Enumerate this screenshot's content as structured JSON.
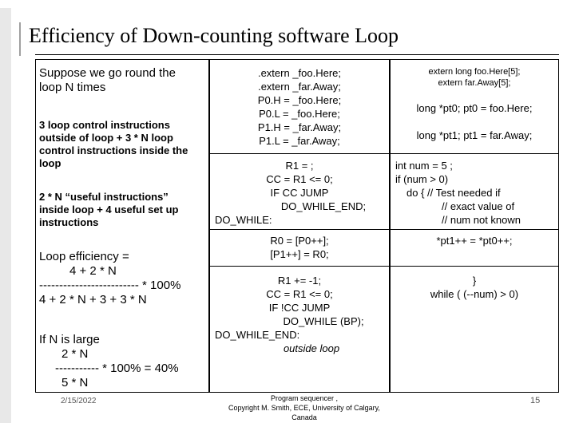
{
  "title": "Efficiency of Down-counting  software Loop",
  "left": {
    "intro": [
      "Suppose we go round the",
      "loop N times"
    ],
    "control": [
      "3 loop control instructions",
      "outside of loop + 3 * N loop",
      "control instructions inside the",
      "loop"
    ],
    "useful": [
      "2 * N “useful instructions”",
      "inside loop + 4 useful set up",
      "instructions"
    ],
    "efficiency": [
      "Loop efficiency =",
      "4 + 2 * N",
      "-------------------------  * 100%",
      "4 + 2 * N + 3 + 3 * N"
    ],
    "large": [
      "If N is large",
      "2 * N",
      "----------- * 100% = 40%",
      "5 * N"
    ]
  },
  "middle": {
    "block1": [
      ".extern _foo.Here;",
      ".extern _far.Away;",
      "P0.H = _foo.Here;",
      "P0.L = _foo.Here;",
      "P1.H = _far.Away;",
      "P1.L = _far.Away;"
    ],
    "block2": [
      "R1 = ;",
      "CC = R1 <= 0;",
      "IF CC JUMP",
      "DO_WHILE_END;",
      "DO_WHILE:"
    ],
    "block3": [
      "R0 = [P0++];",
      "[P1++] = R0;"
    ],
    "block4": [
      "R1 += -1;",
      "CC = R1 <= 0;",
      "IF !CC JUMP",
      "DO_WHILE (BP);",
      "DO_WHILE_END:",
      "outside loop"
    ]
  },
  "right": {
    "block1": [
      "extern long foo.Here[5];",
      "extern far.Away[5];",
      "long *pt0;   pt0 = foo.Here;",
      "long *pt1;   pt1 = far.Away;"
    ],
    "block2": [
      "int num = 5 ;",
      "if (num > 0)",
      "do {     // Test needed if",
      "// exact value of",
      "// num not known"
    ],
    "block3": [
      "*pt1++ = *pt0++;"
    ],
    "block4": [
      "}",
      "while ( (--num) > 0)"
    ]
  },
  "footer": {
    "date": "2/15/2022",
    "center": [
      "Program sequencer ,",
      "Copyright M. Smith, ECE, University of Calgary,",
      "Canada"
    ],
    "page": "15"
  }
}
